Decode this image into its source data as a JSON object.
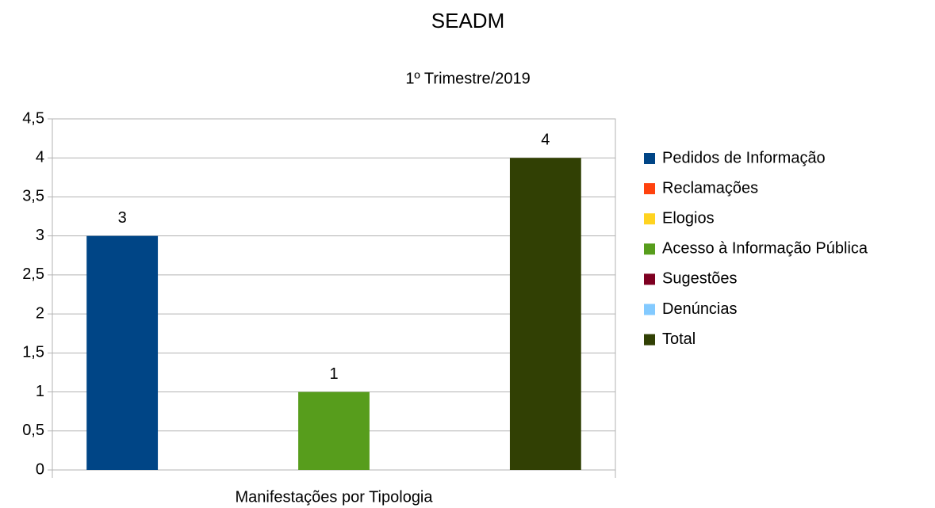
{
  "chart_data": {
    "type": "bar",
    "title": "SEADM",
    "subtitle": "1º Trimestre/2019",
    "categories": [
      "Manifestações por Tipologia"
    ],
    "series": [
      {
        "name": "Pedidos de Informação",
        "color": "#004586",
        "values": [
          3
        ]
      },
      {
        "name": "Reclamações",
        "color": "#ff420e",
        "values": [
          null
        ]
      },
      {
        "name": "Elogios",
        "color": "#ffd320",
        "values": [
          null
        ]
      },
      {
        "name": "Acesso à Informação Pública",
        "color": "#579d1c",
        "values": [
          1
        ]
      },
      {
        "name": "Sugestões",
        "color": "#7e0021",
        "values": [
          null
        ]
      },
      {
        "name": "Denúncias",
        "color": "#83caff",
        "values": [
          null
        ]
      },
      {
        "name": "Total",
        "color": "#314004",
        "values": [
          4
        ]
      }
    ],
    "ylim": [
      0,
      4.5
    ],
    "yticks": [
      0,
      {
        "value": 0.5,
        "label": "0,5"
      },
      1,
      {
        "value": 1.5,
        "label": "1,5"
      },
      2,
      {
        "value": 2.5,
        "label": "2,5"
      },
      3,
      {
        "value": 3.5,
        "label": "3,5"
      },
      4,
      {
        "value": 4.5,
        "label": "4,5"
      }
    ],
    "grid": true,
    "legend": "right"
  }
}
